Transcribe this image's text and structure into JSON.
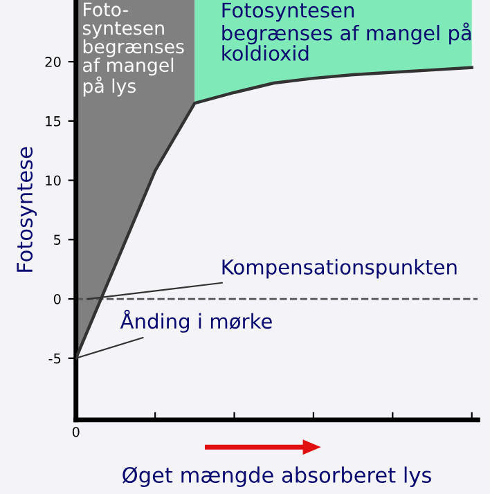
{
  "chart_data": {
    "type": "line",
    "ylabel": "Fotosyntese",
    "xlabel": "Øget mængde absorberet lys",
    "categories": [
      "0",
      null,
      null,
      null,
      null,
      null,
      null,
      null,
      null,
      null,
      null
    ],
    "series": [
      {
        "color": "#333333",
        "values": [
          -5,
          2.9,
          10.8,
          16.5,
          17.4,
          18.2,
          18.6,
          18.9,
          19.1,
          19.3,
          19.5
        ]
      }
    ],
    "ylim": [
      -10.2,
      25.2
    ],
    "yticks": [
      -5,
      0,
      5,
      10,
      15,
      20
    ],
    "ref_lines": [
      {
        "axis": "y",
        "value": 0,
        "color": "#555555",
        "line_style": "dashed"
      }
    ],
    "annotations": [
      "Foto-\nsyntesen\nbegrænses\naf mangel\npå lys",
      "Fotosyntesen\nbegrænses af mangel på\nkoldioxid",
      "Kompensationspunkten",
      "Ånding i mørke"
    ],
    "grid": false,
    "legend": false
  }
}
